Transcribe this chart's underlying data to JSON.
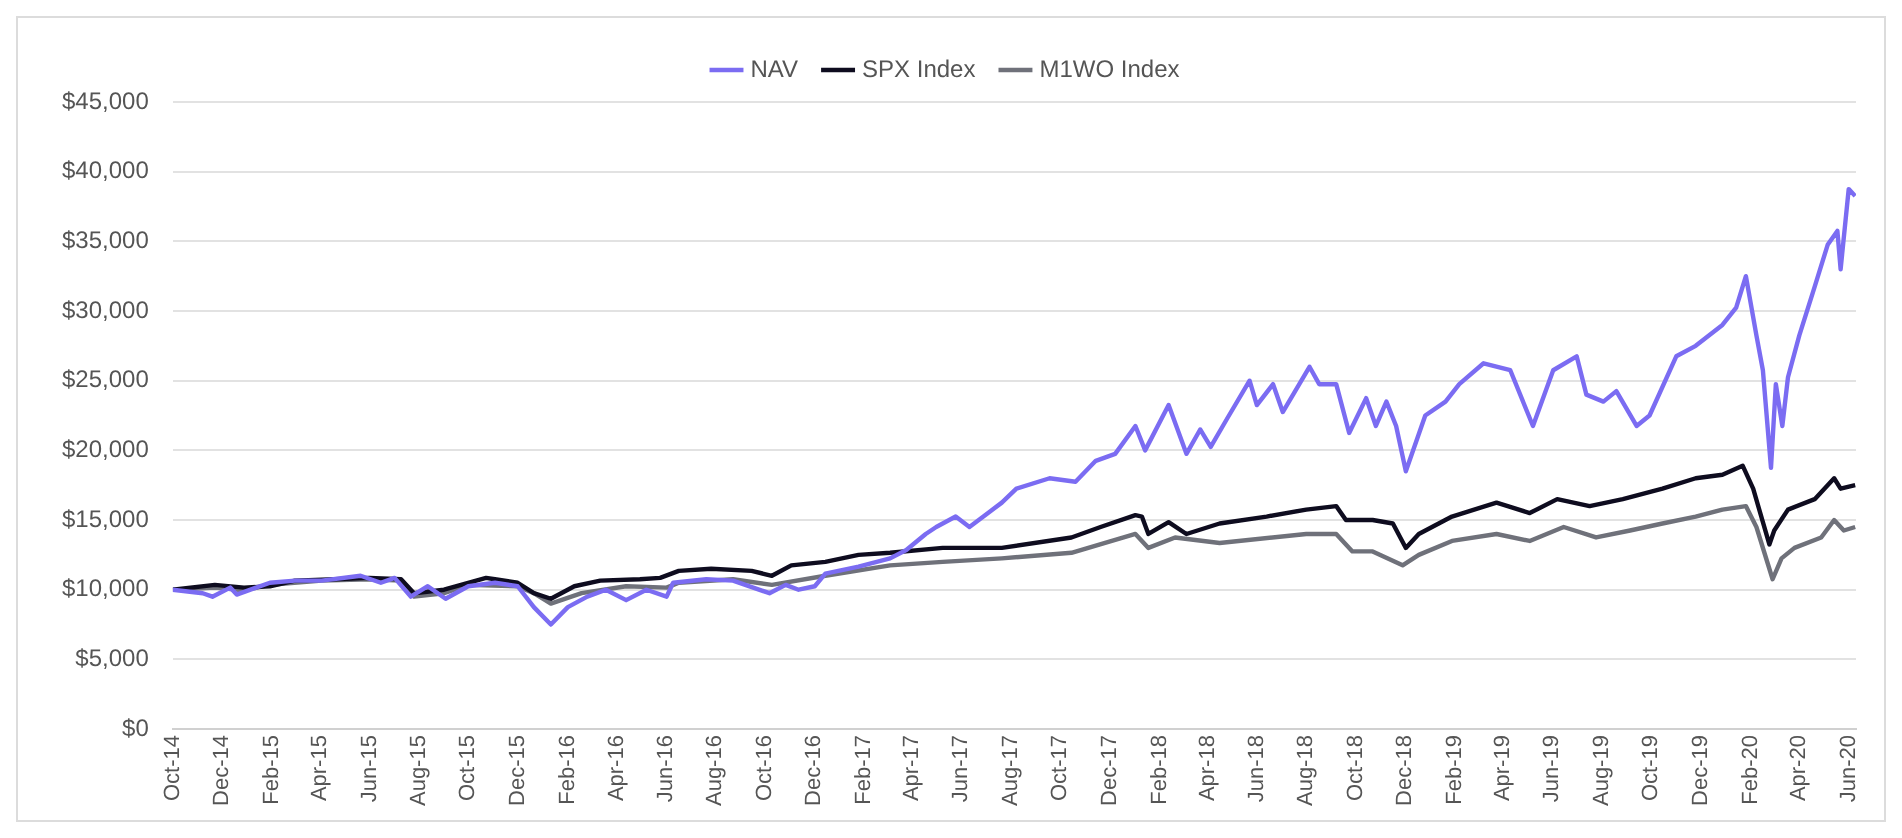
{
  "chart_data": {
    "type": "line",
    "xlim": [
      "2014-10-01",
      "2020-06-10"
    ],
    "xticks": [
      {
        "value": "2014-10-01",
        "label": "Oct-14"
      },
      {
        "value": "2014-12-01",
        "label": "Dec-14"
      },
      {
        "value": "2015-02-01",
        "label": "Feb-15"
      },
      {
        "value": "2015-04-01",
        "label": "Apr-15"
      },
      {
        "value": "2015-06-01",
        "label": "Jun-15"
      },
      {
        "value": "2015-08-01",
        "label": "Aug-15"
      },
      {
        "value": "2015-10-01",
        "label": "Oct-15"
      },
      {
        "value": "2015-12-01",
        "label": "Dec-15"
      },
      {
        "value": "2016-02-01",
        "label": "Feb-16"
      },
      {
        "value": "2016-04-01",
        "label": "Apr-16"
      },
      {
        "value": "2016-06-01",
        "label": "Jun-16"
      },
      {
        "value": "2016-08-01",
        "label": "Aug-16"
      },
      {
        "value": "2016-10-01",
        "label": "Oct-16"
      },
      {
        "value": "2016-12-01",
        "label": "Dec-16"
      },
      {
        "value": "2017-02-01",
        "label": "Feb-17"
      },
      {
        "value": "2017-04-01",
        "label": "Apr-17"
      },
      {
        "value": "2017-06-01",
        "label": "Jun-17"
      },
      {
        "value": "2017-08-01",
        "label": "Aug-17"
      },
      {
        "value": "2017-10-01",
        "label": "Oct-17"
      },
      {
        "value": "2017-12-01",
        "label": "Dec-17"
      },
      {
        "value": "2018-02-01",
        "label": "Feb-18"
      },
      {
        "value": "2018-04-01",
        "label": "Apr-18"
      },
      {
        "value": "2018-06-01",
        "label": "Jun-18"
      },
      {
        "value": "2018-08-01",
        "label": "Aug-18"
      },
      {
        "value": "2018-10-01",
        "label": "Oct-18"
      },
      {
        "value": "2018-12-01",
        "label": "Dec-18"
      },
      {
        "value": "2019-02-01",
        "label": "Feb-19"
      },
      {
        "value": "2019-04-01",
        "label": "Apr-19"
      },
      {
        "value": "2019-06-01",
        "label": "Jun-19"
      },
      {
        "value": "2019-08-01",
        "label": "Aug-19"
      },
      {
        "value": "2019-10-01",
        "label": "Oct-19"
      },
      {
        "value": "2019-12-01",
        "label": "Dec-19"
      },
      {
        "value": "2020-02-01",
        "label": "Feb-20"
      },
      {
        "value": "2020-04-01",
        "label": "Apr-20"
      },
      {
        "value": "2020-06-01",
        "label": "Jun-20"
      }
    ],
    "ylim": [
      0,
      45000
    ],
    "yticks": [
      {
        "value": 0,
        "label": "$0"
      },
      {
        "value": 5000,
        "label": "$5,000"
      },
      {
        "value": 10000,
        "label": "$10,000"
      },
      {
        "value": 15000,
        "label": "$15,000"
      },
      {
        "value": 20000,
        "label": "$20,000"
      },
      {
        "value": 25000,
        "label": "$25,000"
      },
      {
        "value": 30000,
        "label": "$30,000"
      },
      {
        "value": 35000,
        "label": "$35,000"
      },
      {
        "value": 40000,
        "label": "$40,000"
      },
      {
        "value": 45000,
        "label": "$45,000"
      }
    ],
    "grid": "y",
    "legend": "top",
    "marker": "none",
    "line_style": "solid",
    "series": [
      {
        "name": "NAV",
        "color": "#7b6cf2",
        "x": [
          "2014-10-01",
          "2014-11-07",
          "2014-11-19",
          "2014-12-11",
          "2014-12-19",
          "2015-01-29",
          "2015-03-01",
          "2015-04-03",
          "2015-05-21",
          "2015-06-15",
          "2015-07-02",
          "2015-07-22",
          "2015-08-12",
          "2015-09-03",
          "2015-10-01",
          "2015-11-03",
          "2015-12-01",
          "2015-12-21",
          "2016-01-11",
          "2016-02-01",
          "2016-02-25",
          "2016-03-19",
          "2016-04-13",
          "2016-05-08",
          "2016-06-02",
          "2016-06-10",
          "2016-07-21",
          "2016-08-23",
          "2016-10-07",
          "2016-10-27",
          "2016-11-12",
          "2016-12-02",
          "2016-12-15",
          "2017-01-25",
          "2017-03-05",
          "2017-03-25",
          "2017-04-18",
          "2017-05-01",
          "2017-05-25",
          "2017-06-11",
          "2017-07-21",
          "2017-08-08",
          "2017-09-18",
          "2017-10-20",
          "2017-11-14",
          "2017-12-08",
          "2018-01-02",
          "2018-01-14",
          "2018-02-12",
          "2018-03-06",
          "2018-03-23",
          "2018-04-05",
          "2018-04-25",
          "2018-05-23",
          "2018-06-01",
          "2018-06-21",
          "2018-07-03",
          "2018-08-05",
          "2018-08-17",
          "2018-09-07",
          "2018-09-23",
          "2018-10-14",
          "2018-10-26",
          "2018-11-08",
          "2018-11-20",
          "2018-12-02",
          "2018-12-26",
          "2019-01-20",
          "2019-02-06",
          "2019-03-08",
          "2019-04-10",
          "2019-05-08",
          "2019-06-02",
          "2019-07-01",
          "2019-07-13",
          "2019-08-03",
          "2019-08-19",
          "2019-09-13",
          "2019-09-29",
          "2019-11-01",
          "2019-11-25",
          "2019-12-28",
          "2020-01-14",
          "2020-01-26",
          "2020-02-08",
          "2020-02-16",
          "2020-02-26",
          "2020-03-03",
          "2020-03-11",
          "2020-03-18",
          "2020-04-01",
          "2020-04-20",
          "2020-05-06",
          "2020-05-18",
          "2020-05-22",
          "2020-06-01",
          "2020-06-09"
        ],
        "values": [
          10000,
          9750,
          9500,
          10150,
          9650,
          10500,
          10650,
          10650,
          11000,
          10500,
          10850,
          9500,
          10250,
          9350,
          10250,
          10500,
          10250,
          8750,
          7500,
          8750,
          9500,
          10000,
          9250,
          10000,
          9500,
          10500,
          10750,
          10650,
          9750,
          10350,
          10000,
          10250,
          11150,
          11650,
          12250,
          12850,
          14000,
          14500,
          15250,
          14500,
          16250,
          17250,
          18000,
          17750,
          19250,
          19750,
          21750,
          20000,
          23250,
          19750,
          21500,
          20250,
          22250,
          25000,
          23250,
          24750,
          22750,
          26000,
          24750,
          24750,
          21250,
          23750,
          21750,
          23500,
          21750,
          18500,
          22500,
          23500,
          24750,
          26250,
          25750,
          21750,
          25750,
          26750,
          24000,
          23500,
          24250,
          21750,
          22500,
          26750,
          27500,
          29000,
          30250,
          32500,
          28250,
          25750,
          18750,
          24750,
          21750,
          25250,
          28250,
          31750,
          34750,
          35750,
          33000,
          38750,
          38250
        ]
      },
      {
        "name": "SPX Index",
        "color": "#0e0c1f",
        "x": [
          "2014-10-01",
          "2014-11-22",
          "2014-12-28",
          "2015-01-29",
          "2015-03-01",
          "2015-04-20",
          "2015-06-01",
          "2015-07-10",
          "2015-07-26",
          "2015-09-01",
          "2015-10-23",
          "2015-11-03",
          "2015-12-01",
          "2015-12-21",
          "2016-01-11",
          "2016-02-09",
          "2016-03-12",
          "2016-04-30",
          "2016-05-25",
          "2016-06-17",
          "2016-07-27",
          "2016-09-15",
          "2016-10-10",
          "2016-11-03",
          "2016-12-15",
          "2017-01-25",
          "2017-03-05",
          "2017-05-09",
          "2017-07-21",
          "2017-10-15",
          "2017-11-20",
          "2018-01-02",
          "2018-01-10",
          "2018-01-18",
          "2018-02-12",
          "2018-03-06",
          "2018-04-16",
          "2018-06-13",
          "2018-08-01",
          "2018-09-07",
          "2018-09-19",
          "2018-10-22",
          "2018-11-16",
          "2018-12-02",
          "2018-12-18",
          "2019-01-28",
          "2019-03-24",
          "2019-05-04",
          "2019-06-07",
          "2019-07-17",
          "2019-08-27",
          "2019-10-15",
          "2019-11-25",
          "2019-12-28",
          "2020-01-22",
          "2020-02-04",
          "2020-02-24",
          "2020-03-01",
          "2020-03-18",
          "2020-04-20",
          "2020-05-14",
          "2020-05-22",
          "2020-06-09"
        ],
        "values": [
          10000,
          10350,
          10150,
          10250,
          10650,
          10750,
          10850,
          10750,
          9750,
          10000,
          10850,
          10750,
          10500,
          9750,
          9350,
          10250,
          10650,
          10750,
          10850,
          11350,
          11500,
          11350,
          11000,
          11750,
          12000,
          12500,
          12650,
          13000,
          13000,
          13750,
          14500,
          15350,
          15250,
          14000,
          14850,
          14000,
          14750,
          15250,
          15750,
          16000,
          15000,
          15000,
          14750,
          13000,
          14000,
          15250,
          16250,
          15500,
          16500,
          16000,
          16500,
          17250,
          18000,
          18250,
          18900,
          17250,
          13250,
          14250,
          15750,
          16500,
          18000,
          17250,
          17500
        ]
      },
      {
        "name": "M1WO Index",
        "color": "#6f717a",
        "x": [
          "2014-10-01",
          "2014-11-22",
          "2014-12-28",
          "2015-01-29",
          "2015-04-03",
          "2015-06-01",
          "2015-07-10",
          "2015-07-26",
          "2015-09-01",
          "2015-10-01",
          "2015-12-01",
          "2015-12-21",
          "2016-01-11",
          "2016-02-18",
          "2016-04-13",
          "2016-06-02",
          "2016-06-17",
          "2016-08-23",
          "2016-10-10",
          "2016-12-15",
          "2017-03-05",
          "2017-05-09",
          "2017-07-21",
          "2017-10-15",
          "2018-01-02",
          "2018-01-18",
          "2018-02-20",
          "2018-04-16",
          "2018-08-01",
          "2018-09-07",
          "2018-09-27",
          "2018-10-22",
          "2018-11-28",
          "2018-12-18",
          "2019-01-28",
          "2019-03-24",
          "2019-05-04",
          "2019-06-15",
          "2019-07-25",
          "2019-09-05",
          "2019-10-15",
          "2019-11-25",
          "2019-12-28",
          "2020-01-26",
          "2020-02-08",
          "2020-02-28",
          "2020-03-10",
          "2020-03-26",
          "2020-04-28",
          "2020-05-14",
          "2020-05-26",
          "2020-06-09"
        ],
        "values": [
          10000,
          10150,
          9950,
          10350,
          10650,
          10750,
          10650,
          9500,
          9750,
          10350,
          10250,
          9750,
          9000,
          9750,
          10250,
          10150,
          10500,
          10750,
          10350,
          11000,
          11750,
          12000,
          12250,
          12650,
          14000,
          13000,
          13750,
          13350,
          14000,
          14000,
          12750,
          12750,
          11750,
          12500,
          13500,
          14000,
          13500,
          14500,
          13750,
          14250,
          14750,
          15250,
          15750,
          16000,
          14500,
          10750,
          12250,
          13000,
          13750,
          15000,
          14250,
          14500
        ]
      }
    ]
  }
}
